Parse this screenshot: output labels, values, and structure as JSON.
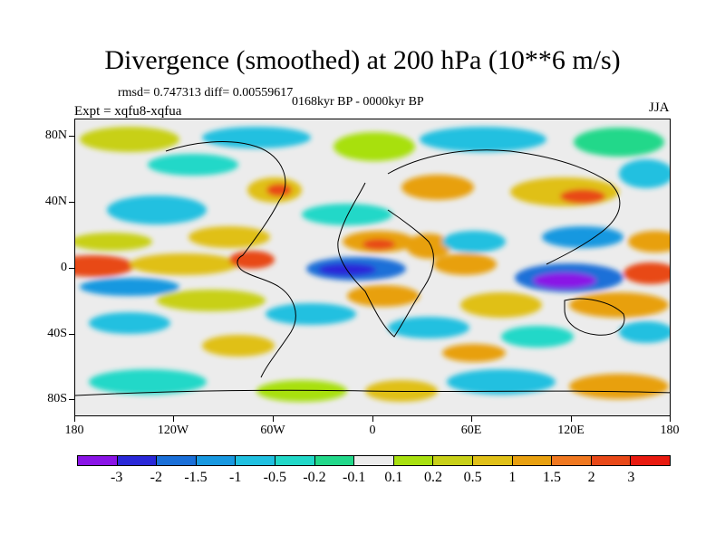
{
  "header": {
    "title": "Divergence (smoothed) at 200 hPa (10**6 m/s)",
    "stats": "rmsd= 0.747313 diff= 0.00559617",
    "period": "0168kyr BP - 0000kyr BP",
    "experiment": "Expt = xqfu8-xqfua",
    "season": "JJA"
  },
  "axes": {
    "lat_ticks": [
      "80N",
      "40N",
      "0",
      "40S",
      "80S"
    ],
    "lon_ticks": [
      "180",
      "120W",
      "60W",
      "0",
      "60E",
      "120E",
      "180"
    ]
  },
  "colorbar": {
    "colors": [
      "#8a14e6",
      "#2a28d8",
      "#1a6fd8",
      "#1898e0",
      "#20c0e0",
      "#22d8c8",
      "#22d88a",
      "#ececec",
      "#a8e010",
      "#c8d018",
      "#e0c018",
      "#e8a010",
      "#f07820",
      "#e84818",
      "#e81a10"
    ],
    "labels": [
      "-3",
      "-2",
      "-1.5",
      "-1",
      "-0.5",
      "-0.2",
      "-0.1",
      "0.1",
      "0.2",
      "0.5",
      "1",
      "1.5",
      "2",
      "3"
    ]
  },
  "map_colors": {
    "ocean_background": "#ececec",
    "coastline": "#000000"
  }
}
